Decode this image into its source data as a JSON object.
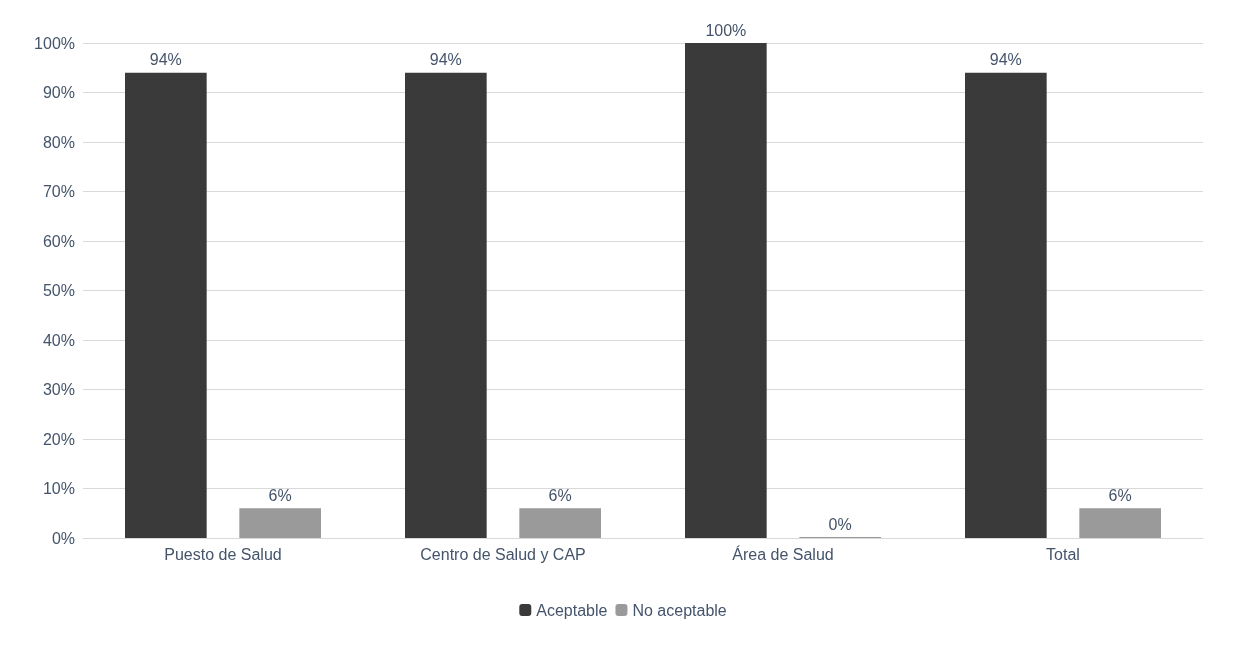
{
  "chart_data": {
    "type": "bar",
    "categories": [
      "Puesto de Salud",
      "Centro de Salud y CAP",
      "Área de Salud",
      "Total"
    ],
    "series": [
      {
        "name": "Aceptable",
        "color": "#3a3a3a",
        "values": [
          94,
          94,
          100,
          94
        ],
        "value_labels": [
          "94%",
          "94%",
          "100%",
          "94%"
        ]
      },
      {
        "name": "No aceptable",
        "color": "#9a9a9a",
        "values": [
          6,
          6,
          0,
          6
        ],
        "value_labels": [
          "6%",
          "6%",
          "0%",
          "6%"
        ]
      }
    ],
    "ylim": [
      0,
      100
    ],
    "yticks": [
      {
        "value": 0,
        "label": "0%"
      },
      {
        "value": 10,
        "label": "10%"
      },
      {
        "value": 20,
        "label": "20%"
      },
      {
        "value": 30,
        "label": "30%"
      },
      {
        "value": 40,
        "label": "40%"
      },
      {
        "value": 50,
        "label": "50%"
      },
      {
        "value": 60,
        "label": "60%"
      },
      {
        "value": 70,
        "label": "70%"
      },
      {
        "value": 80,
        "label": "80%"
      },
      {
        "value": 90,
        "label": "90%"
      },
      {
        "value": 100,
        "label": "100%"
      }
    ],
    "grid": "y",
    "legend": "bottom"
  }
}
